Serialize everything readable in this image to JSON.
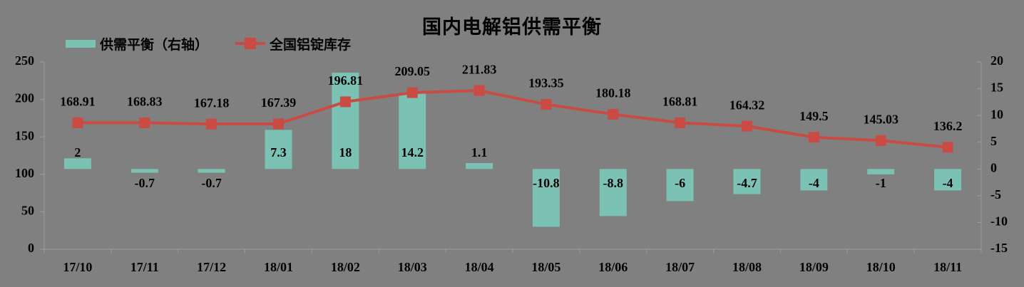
{
  "title": "国内电解铝供需平衡",
  "colors": {
    "background": "#808080",
    "bar": "#7BC1B4",
    "line": "#C94B43",
    "text": "#000000",
    "axis": "#9C9C9C"
  },
  "legend": {
    "items": [
      {
        "label": "供需平衡（右轴）",
        "marker": "bar-swatch"
      },
      {
        "label": "全国铝锭库存",
        "marker": "line-with-square-marker"
      }
    ],
    "position": "top-left"
  },
  "chart_data": {
    "type": "bar+line combo",
    "title": "国内电解铝供需平衡",
    "categories": [
      "17/10",
      "17/11",
      "17/12",
      "18/01",
      "18/02",
      "18/03",
      "18/04",
      "18/05",
      "18/06",
      "18/07",
      "18/08",
      "18/09",
      "18/10",
      "18/11"
    ],
    "series": [
      {
        "name": "供需平衡（右轴）",
        "type": "bar",
        "axis": "right",
        "color": "#7BC1B4",
        "values": [
          2,
          -0.7,
          -0.7,
          7.3,
          18,
          14.2,
          1.1,
          -10.8,
          -8.8,
          -6,
          -4.7,
          -4,
          -1,
          -4
        ]
      },
      {
        "name": "全国铝锭库存",
        "type": "line",
        "axis": "left",
        "color": "#C94B43",
        "marker": "square",
        "values": [
          168.91,
          168.83,
          167.18,
          167.39,
          196.81,
          209.05,
          211.83,
          193.35,
          180.18,
          168.81,
          164.32,
          149.5,
          145.03,
          136.2
        ]
      }
    ],
    "left_axis": {
      "ticks": [
        0,
        50,
        100,
        150,
        200,
        250
      ],
      "range": [
        0,
        250
      ]
    },
    "right_axis": {
      "ticks": [
        -15,
        -10,
        -5,
        0,
        5,
        10,
        15,
        20
      ],
      "range": [
        -15,
        20
      ]
    },
    "data_labels": true,
    "grid": false,
    "legend_position": "top-left"
  }
}
